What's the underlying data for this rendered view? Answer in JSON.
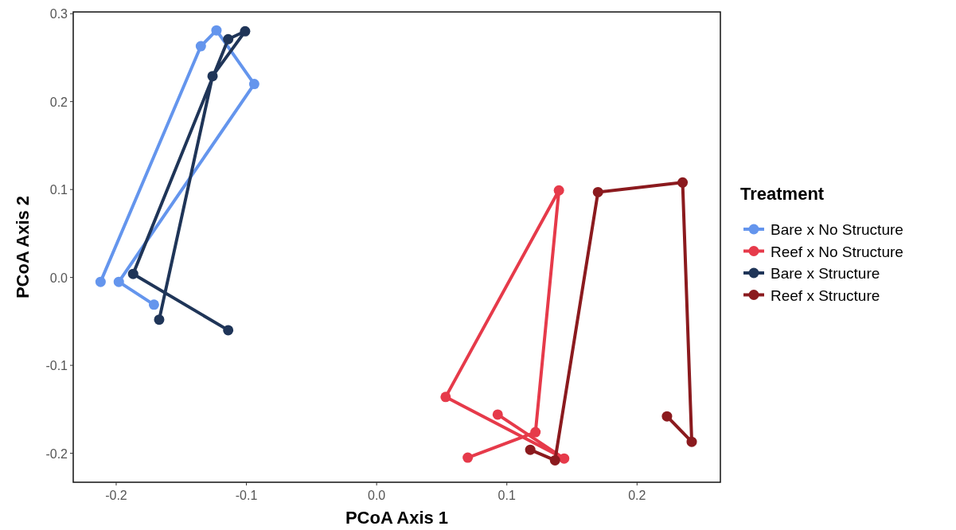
{
  "chart_data": {
    "type": "line",
    "xlabel": "PCoA Axis 1",
    "ylabel": "PCoA Axis 2",
    "legend_title": "Treatment",
    "legend": "right",
    "marker": "circle",
    "grid": false,
    "xlim": [
      -0.233,
      0.264
    ],
    "ylim": [
      -0.233,
      0.302
    ],
    "xticks": [
      {
        "value": -0.2,
        "label": "-0.2"
      },
      {
        "value": -0.1,
        "label": "-0.1"
      },
      {
        "value": 0,
        "label": "0.0"
      },
      {
        "value": 0.1,
        "label": "0.1"
      },
      {
        "value": 0.2,
        "label": "0.2"
      }
    ],
    "yticks": [
      {
        "value": -0.2,
        "label": "-0.2"
      },
      {
        "value": -0.1,
        "label": "-0.1"
      },
      {
        "value": 0,
        "label": "0.0"
      },
      {
        "value": 0.1,
        "label": "0.1"
      },
      {
        "value": 0.2,
        "label": "0.2"
      },
      {
        "value": 0.3,
        "label": "0.3"
      }
    ],
    "series": [
      {
        "name": "Bare x No Structure",
        "color": "#6495ed",
        "x": [
          -0.212,
          -0.135,
          -0.123,
          -0.094,
          -0.198,
          -0.171
        ],
        "values": [
          -0.005,
          0.263,
          0.281,
          0.22,
          -0.005,
          -0.031
        ]
      },
      {
        "name": "Reef x No Structure",
        "color": "#e63a4a",
        "x": [
          0.07,
          0.122,
          0.14,
          0.053,
          0.144,
          0.093
        ],
        "values": [
          -0.205,
          -0.176,
          0.099,
          -0.136,
          -0.206,
          -0.156
        ]
      },
      {
        "name": "Bare x Structure",
        "color": "#1f3558",
        "x": [
          -0.114,
          -0.187,
          -0.114,
          -0.101,
          -0.126,
          -0.167
        ],
        "values": [
          -0.06,
          0.004,
          0.271,
          0.28,
          0.229,
          -0.048
        ]
      },
      {
        "name": "Reef x Structure",
        "color": "#8b1a1e",
        "x": [
          0.118,
          0.137,
          0.17,
          0.235,
          0.242,
          0.223
        ],
        "values": [
          -0.196,
          -0.208,
          0.097,
          0.108,
          -0.187,
          -0.158
        ]
      }
    ]
  }
}
